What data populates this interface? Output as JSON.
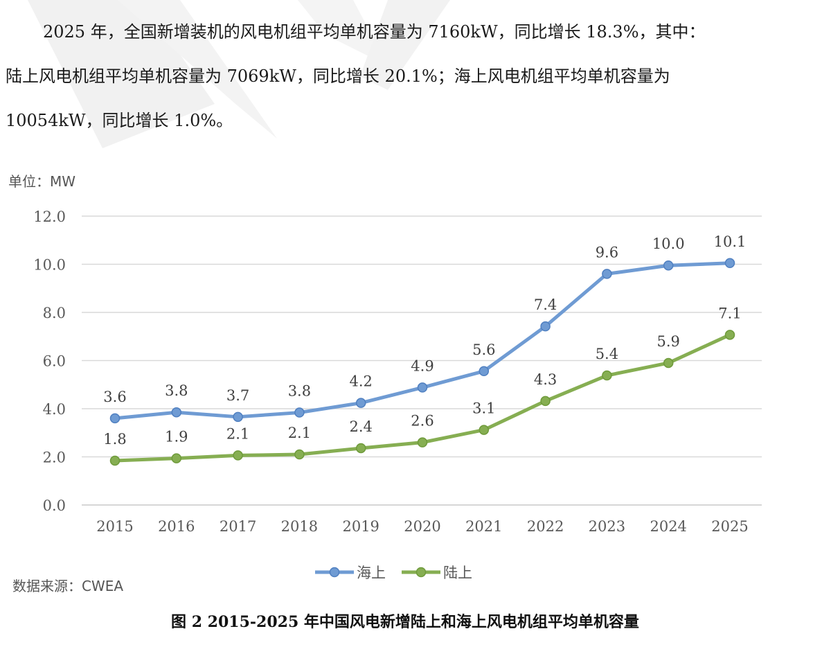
{
  "paragraph": {
    "line1": "2025 年，全国新增装机的风电机组平均单机容量为 7160kW，同比增长 18.3%，其中：",
    "line2": "陆上风电机组平均单机容量为  7069kW，同比增长  20.1%；海上风电机组平均单机容量为",
    "line3": "10054kW，同比增长 1.0%。"
  },
  "unit_label": "单位：MW",
  "source_label": "数据来源：CWEA",
  "caption": "图  2    2015-2025 年中国风电新增陆上和海上风电机组平均单机容量",
  "chart_data": {
    "type": "line",
    "x": [
      "2015",
      "2016",
      "2017",
      "2018",
      "2019",
      "2020",
      "2021",
      "2022",
      "2023",
      "2024",
      "2025"
    ],
    "ylim": [
      0,
      12
    ],
    "yticks": [
      0,
      2,
      4,
      6,
      8,
      10,
      12
    ],
    "ytick_labels": [
      "0.0",
      "2.0",
      "4.0",
      "6.0",
      "8.0",
      "10.0",
      "12.0"
    ],
    "grid": true,
    "legend": "bottom-center",
    "series": [
      {
        "name": "海上",
        "color": "#6f9bd3",
        "values": [
          3.6,
          3.85,
          3.66,
          3.84,
          4.24,
          4.88,
          5.56,
          7.42,
          9.6,
          9.95,
          10.05
        ],
        "labels": [
          "3.6",
          "3.8",
          "3.7",
          "3.8",
          "4.2",
          "4.9",
          "5.6",
          "7.4",
          "9.6",
          "10.0",
          "10.1"
        ]
      },
      {
        "name": "陆上",
        "color": "#86ae52",
        "values": [
          1.84,
          1.94,
          2.06,
          2.1,
          2.36,
          2.6,
          3.12,
          4.32,
          5.38,
          5.9,
          7.07
        ],
        "labels": [
          "1.8",
          "1.9",
          "2.1",
          "2.1",
          "2.4",
          "2.6",
          "3.1",
          "4.3",
          "5.4",
          "5.9",
          "7.1"
        ]
      }
    ]
  }
}
